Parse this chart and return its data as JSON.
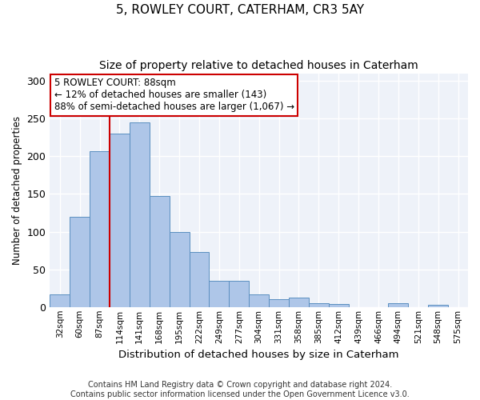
{
  "title": "5, ROWLEY COURT, CATERHAM, CR3 5AY",
  "subtitle": "Size of property relative to detached houses in Caterham",
  "xlabel": "Distribution of detached houses by size in Caterham",
  "ylabel": "Number of detached properties",
  "bar_labels": [
    "32sqm",
    "60sqm",
    "87sqm",
    "114sqm",
    "141sqm",
    "168sqm",
    "195sqm",
    "222sqm",
    "249sqm",
    "277sqm",
    "304sqm",
    "331sqm",
    "358sqm",
    "385sqm",
    "412sqm",
    "439sqm",
    "466sqm",
    "494sqm",
    "521sqm",
    "548sqm",
    "575sqm"
  ],
  "bar_values": [
    17,
    120,
    207,
    230,
    245,
    147,
    100,
    73,
    35,
    35,
    17,
    10,
    12,
    5,
    4,
    0,
    0,
    5,
    0,
    3,
    0
  ],
  "bar_color": "#aec6e8",
  "bar_edge_color": "#5a8fc0",
  "vline_color": "#cc0000",
  "annotation_box_text": "5 ROWLEY COURT: 88sqm\n← 12% of detached houses are smaller (143)\n88% of semi-detached houses are larger (1,067) →",
  "annotation_box_color": "#cc0000",
  "annotation_text_fontsize": 8.5,
  "background_color": "#eef2f9",
  "grid_color": "#ffffff",
  "ylim": [
    0,
    310
  ],
  "yticks": [
    0,
    50,
    100,
    150,
    200,
    250,
    300
  ],
  "footer_text": "Contains HM Land Registry data © Crown copyright and database right 2024.\nContains public sector information licensed under the Open Government Licence v3.0.",
  "title_fontsize": 11,
  "subtitle_fontsize": 10,
  "xlabel_fontsize": 9.5,
  "ylabel_fontsize": 8.5,
  "footer_fontsize": 7
}
